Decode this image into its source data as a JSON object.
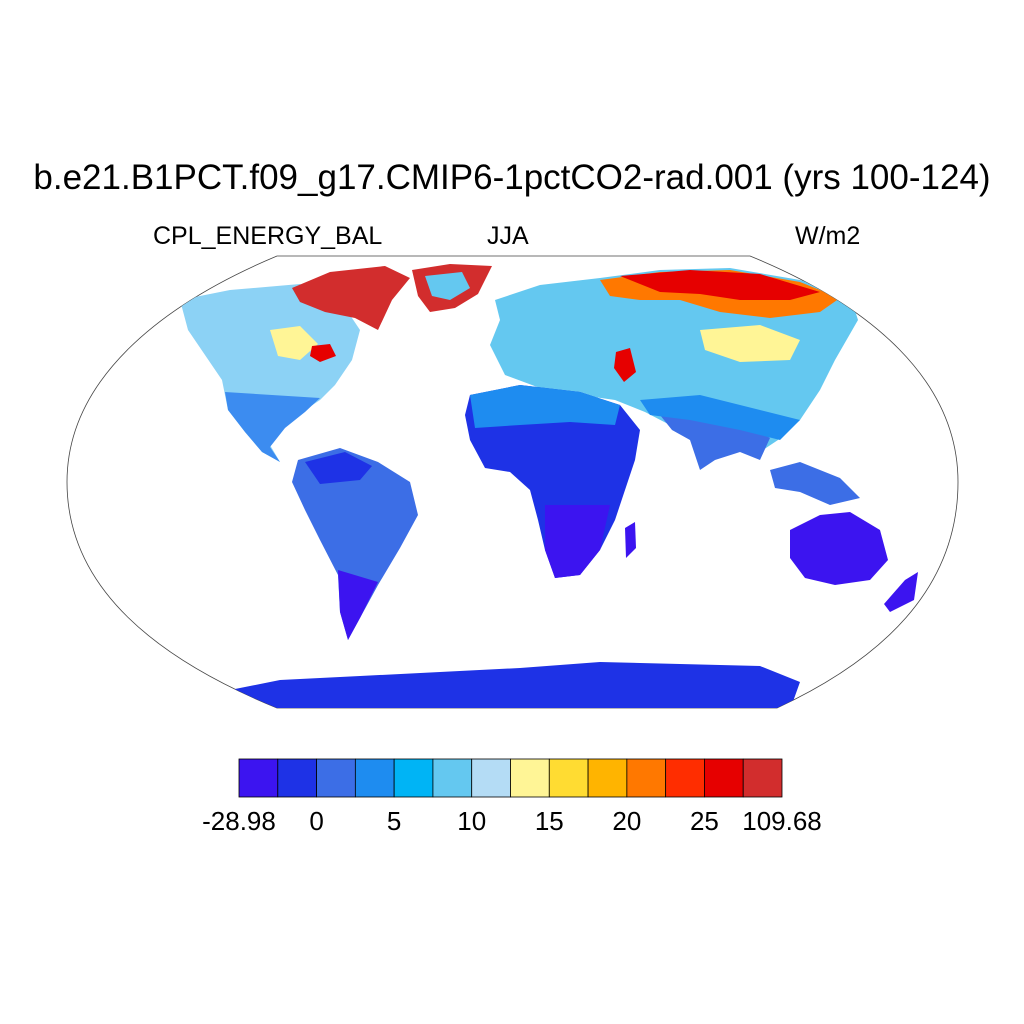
{
  "title": "b.e21.B1PCT.f09_g17.CMIP6-1pctCO2-rad.001 (yrs 100-124)",
  "variable": "CPL_ENERGY_BAL",
  "season": "JJA",
  "units": "W/m2",
  "projection": "Robinson",
  "colorbar": {
    "colors": [
      "#3c14f0",
      "#1e32e6",
      "#3c6ee6",
      "#1e8cf0",
      "#00b4f5",
      "#64c8f0",
      "#b4dcf5",
      "#fff596",
      "#ffdc32",
      "#ffb400",
      "#ff7800",
      "#ff2d00",
      "#e60000",
      "#d22d2d"
    ],
    "labels": [
      "-28.98",
      "0",
      "5",
      "10",
      "15",
      "20",
      "25",
      "109.68"
    ]
  }
}
